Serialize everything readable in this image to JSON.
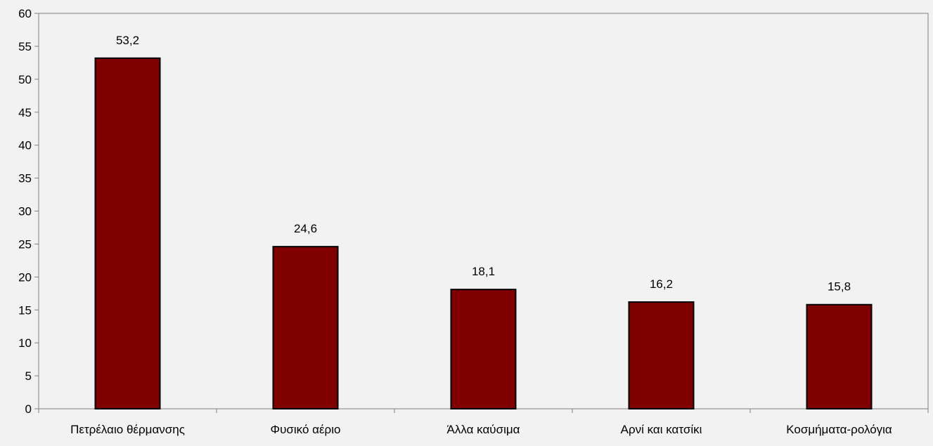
{
  "chart_data": {
    "type": "bar",
    "categories": [
      "Πετρέλαιο θέρμανσης",
      "Φυσικό αέριο",
      "Άλλα καύσιμα",
      "Αρνί και κατσίκι",
      "Κοσμήματα-ρολόγια"
    ],
    "values": [
      53.2,
      24.6,
      18.1,
      16.2,
      15.8
    ],
    "data_labels": [
      "53,2",
      "24,6",
      "18,1",
      "16,2",
      "15,8"
    ],
    "y_ticks": [
      "0",
      "5",
      "10",
      "15",
      "20",
      "25",
      "30",
      "35",
      "40",
      "45",
      "50",
      "55",
      "60"
    ],
    "title": "",
    "xlabel": "",
    "ylabel": "",
    "ylim": [
      0,
      60
    ],
    "ytick_step": 5,
    "grid": false,
    "legend": "none",
    "bar_color": "#800000",
    "bar_border_color": "#000000",
    "background_color": "#f2f2f2"
  }
}
